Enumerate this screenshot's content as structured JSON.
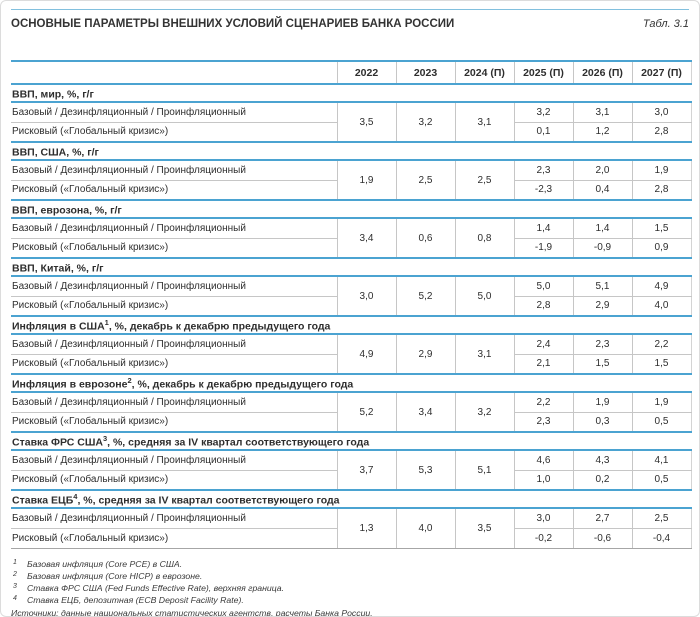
{
  "meta": {
    "title": "ОСНОВНЫЕ ПАРАМЕТРЫ ВНЕШНИХ УСЛОВИЙ СЦЕНАРИЕВ БАНКА РОССИИ",
    "table_ref": "Табл. 3.1"
  },
  "table": {
    "columns": [
      "2022",
      "2023",
      "2024 (П)",
      "2025 (П)",
      "2026 (П)",
      "2027 (П)"
    ],
    "scenario_labels": {
      "baseline": "Базовый / Дезинфляционный / Проинфляционный",
      "risk": "Рисковый («Глобальный кризис»)"
    },
    "sections": [
      {
        "name": "ВВП, мир, %, г/г",
        "sup": "",
        "name_rest": "",
        "history": [
          "3,5",
          "3,2",
          "3,1"
        ],
        "baseline": [
          "3,2",
          "3,1",
          "3,0"
        ],
        "risk": [
          "0,1",
          "1,2",
          "2,8"
        ]
      },
      {
        "name": "ВВП, США, %, г/г",
        "sup": "",
        "name_rest": "",
        "history": [
          "1,9",
          "2,5",
          "2,5"
        ],
        "baseline": [
          "2,3",
          "2,0",
          "1,9"
        ],
        "risk": [
          "-2,3",
          "0,4",
          "2,8"
        ]
      },
      {
        "name": "ВВП, еврозона, %, г/г",
        "sup": "",
        "name_rest": "",
        "history": [
          "3,4",
          "0,6",
          "0,8"
        ],
        "baseline": [
          "1,4",
          "1,4",
          "1,5"
        ],
        "risk": [
          "-1,9",
          "-0,9",
          "0,9"
        ]
      },
      {
        "name": "ВВП, Китай, %, г/г",
        "sup": "",
        "name_rest": "",
        "history": [
          "3,0",
          "5,2",
          "5,0"
        ],
        "baseline": [
          "5,0",
          "5,1",
          "4,9"
        ],
        "risk": [
          "2,8",
          "2,9",
          "4,0"
        ]
      },
      {
        "name": "Инфляция в США",
        "sup": "1",
        "name_rest": ", %, декабрь к декабрю предыдущего года",
        "history": [
          "4,9",
          "2,9",
          "3,1"
        ],
        "baseline": [
          "2,4",
          "2,3",
          "2,2"
        ],
        "risk": [
          "2,1",
          "1,5",
          "1,5"
        ]
      },
      {
        "name": "Инфляция в еврозоне",
        "sup": "2",
        "name_rest": ", %, декабрь к декабрю предыдущего года",
        "history": [
          "5,2",
          "3,4",
          "3,2"
        ],
        "baseline": [
          "2,2",
          "1,9",
          "1,9"
        ],
        "risk": [
          "2,3",
          "0,3",
          "0,5"
        ]
      },
      {
        "name": "Ставка ФРС США",
        "sup": "3",
        "name_rest": ", %, средняя за IV квартал соответствующего года",
        "history": [
          "3,7",
          "5,3",
          "5,1"
        ],
        "baseline": [
          "4,6",
          "4,3",
          "4,1"
        ],
        "risk": [
          "1,0",
          "0,2",
          "0,5"
        ]
      },
      {
        "name": "Ставка ЕЦБ",
        "sup": "4",
        "name_rest": ", %, средняя за IV квартал соответствующего года",
        "history": [
          "1,3",
          "4,0",
          "3,5"
        ],
        "baseline": [
          "3,0",
          "2,7",
          "2,5"
        ],
        "risk": [
          "-0,2",
          "-0,6",
          "-0,4"
        ]
      }
    ]
  },
  "footnotes": [
    {
      "mark": "1",
      "text": "Базовая инфляция (Core PCE) в США."
    },
    {
      "mark": "2",
      "text": "Базовая инфляция (Core HICP) в еврозоне."
    },
    {
      "mark": "3",
      "text": "Ставка ФРС США (Fed Funds Effective Rate), верхняя граница."
    },
    {
      "mark": "4",
      "text": "Ставка ЕЦБ, депозитная (ECB Deposit Facility Rate)."
    }
  ],
  "sources": "Источники: данные национальных статистических агентств, расчеты Банка России.",
  "colors": {
    "accent_blue": "#4ba3d1",
    "grid_gray": "#c6c6c6",
    "text": "#2e2e2e"
  }
}
